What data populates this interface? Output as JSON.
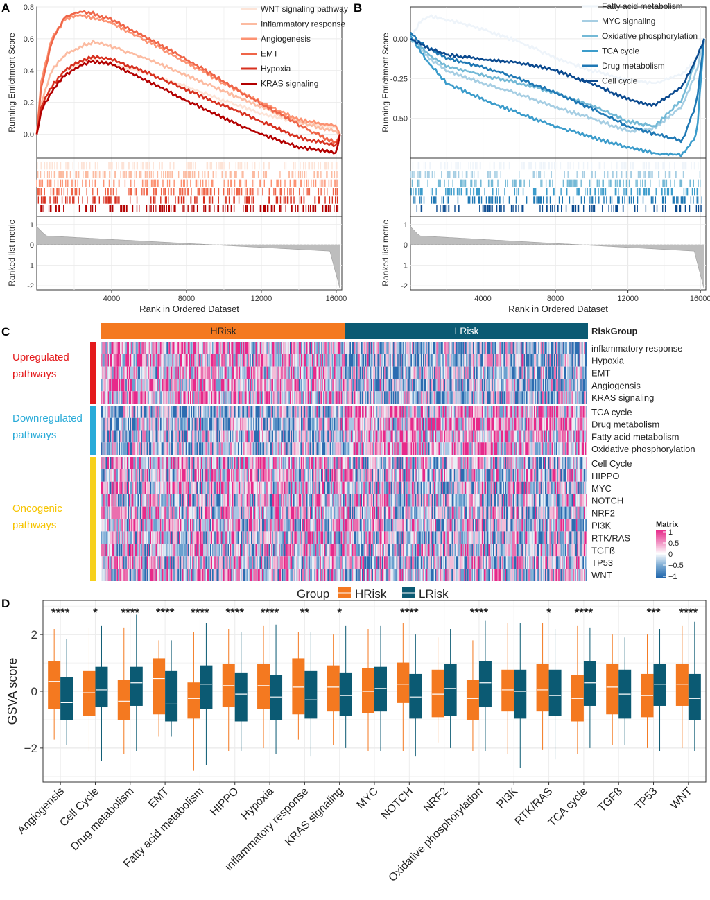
{
  "chart_data": [
    {
      "panel": "A",
      "type": "line",
      "title": "",
      "ylabel": "Running Enrichment Score",
      "ylabel2": "Ranked list metric",
      "xlabel": "Rank in Ordered Dataset",
      "xlim": [
        0,
        16300
      ],
      "ylim": [
        -0.15,
        0.8
      ],
      "xticks": [
        4000,
        8000,
        12000,
        16000
      ],
      "yticks": [
        0.0,
        0.2,
        0.4,
        0.6,
        0.8
      ],
      "ytick_labels": [
        "0.0",
        "0.2",
        "0.4",
        "0.6",
        "0.8"
      ],
      "metric_ylim": [
        -2.2,
        1.4
      ],
      "metric_yticks": [
        -2,
        -1,
        0,
        1
      ],
      "series": [
        {
          "name": "WNT signaling pathway",
          "color": "#fde3d6",
          "x": [
            0,
            250,
            800,
            1500,
            2300,
            3000,
            4000,
            6000,
            8000,
            10000,
            12000,
            14000,
            15500,
            16000,
            16200
          ],
          "y": [
            0.0,
            0.15,
            0.3,
            0.4,
            0.44,
            0.47,
            0.44,
            0.38,
            0.3,
            0.21,
            0.13,
            0.07,
            0.05,
            0.04,
            0.0
          ]
        },
        {
          "name": "Inflammatory response",
          "color": "#fcbba1",
          "x": [
            0,
            250,
            800,
            1500,
            2300,
            3000,
            4000,
            6000,
            8000,
            10000,
            12000,
            14000,
            15500,
            16000,
            16200
          ],
          "y": [
            0.0,
            0.2,
            0.4,
            0.5,
            0.55,
            0.58,
            0.55,
            0.47,
            0.37,
            0.27,
            0.17,
            0.08,
            0.03,
            0.02,
            0.0
          ]
        },
        {
          "name": "Angiogenesis",
          "color": "#fc9272",
          "x": [
            0,
            250,
            800,
            1500,
            2300,
            3000,
            4000,
            6000,
            8000,
            10000,
            12000,
            14000,
            15500,
            16000,
            16200
          ],
          "y": [
            0.0,
            0.35,
            0.6,
            0.72,
            0.75,
            0.73,
            0.7,
            0.58,
            0.45,
            0.32,
            0.2,
            0.09,
            0.06,
            0.05,
            0.0
          ]
        },
        {
          "name": "EMT",
          "color": "#ef6548",
          "x": [
            0,
            250,
            800,
            1500,
            2300,
            3000,
            4000,
            6000,
            8000,
            10000,
            12000,
            14000,
            15500,
            16000,
            16200
          ],
          "y": [
            0.0,
            0.3,
            0.58,
            0.74,
            0.77,
            0.76,
            0.72,
            0.6,
            0.47,
            0.33,
            0.19,
            0.06,
            -0.03,
            -0.05,
            0.0
          ]
        },
        {
          "name": "Hypoxia",
          "color": "#d7301f",
          "x": [
            0,
            250,
            800,
            1500,
            2300,
            3000,
            4000,
            6000,
            8000,
            10000,
            12000,
            14000,
            15500,
            16000,
            16200
          ],
          "y": [
            0.0,
            0.18,
            0.3,
            0.4,
            0.46,
            0.49,
            0.47,
            0.38,
            0.28,
            0.18,
            0.08,
            -0.02,
            -0.06,
            -0.07,
            0.0
          ]
        },
        {
          "name": "KRAS signaling",
          "color": "#b30000",
          "x": [
            0,
            250,
            800,
            1500,
            2300,
            3000,
            4000,
            6000,
            8000,
            10000,
            12000,
            14000,
            15500,
            16000,
            16200
          ],
          "y": [
            0.0,
            0.15,
            0.27,
            0.37,
            0.43,
            0.46,
            0.44,
            0.33,
            0.21,
            0.1,
            0.0,
            -0.08,
            -0.11,
            -0.12,
            0.0
          ]
        }
      ]
    },
    {
      "panel": "B",
      "type": "line",
      "title": "",
      "ylabel": "Running Enrichment Score",
      "ylabel2": "Ranked list metric",
      "xlabel": "Rank in Ordered Dataset",
      "xlim": [
        0,
        16300
      ],
      "ylim": [
        -0.75,
        0.2
      ],
      "xticks": [
        4000,
        8000,
        12000,
        16000
      ],
      "xtick_labels": [
        "4000",
        "8000",
        "12000",
        "16000"
      ],
      "yticks": [
        0.0,
        -0.25,
        -0.5
      ],
      "ytick_labels": [
        "0.00",
        "-0.25",
        "-0.50"
      ],
      "metric_ylim": [
        -2.2,
        1.4
      ],
      "metric_yticks": [
        -2,
        -1,
        0,
        1
      ],
      "series": [
        {
          "name": "Fatty acid metabolism",
          "color": "#eef4fa",
          "x": [
            0,
            500,
            1000,
            2000,
            4000,
            6000,
            8000,
            10000,
            12000,
            13500,
            15000,
            15800,
            16200
          ],
          "y": [
            0.0,
            0.1,
            0.14,
            0.12,
            0.06,
            -0.02,
            -0.12,
            -0.2,
            -0.26,
            -0.28,
            -0.22,
            -0.12,
            0.0
          ]
        },
        {
          "name": "MYC signaling",
          "color": "#a6cee3",
          "x": [
            0,
            500,
            1000,
            2000,
            4000,
            6000,
            8000,
            10000,
            12000,
            13500,
            15000,
            15800,
            16200
          ],
          "y": [
            0.0,
            -0.05,
            -0.12,
            -0.2,
            -0.28,
            -0.35,
            -0.43,
            -0.5,
            -0.58,
            -0.56,
            -0.42,
            -0.2,
            0.0
          ]
        },
        {
          "name": "Oxidative phosphorylation",
          "color": "#74b9d6",
          "x": [
            0,
            500,
            1000,
            2000,
            4000,
            6000,
            8000,
            10000,
            12000,
            13500,
            15000,
            15800,
            16200
          ],
          "y": [
            0.0,
            -0.04,
            -0.1,
            -0.17,
            -0.23,
            -0.28,
            -0.34,
            -0.42,
            -0.52,
            -0.55,
            -0.38,
            -0.12,
            0.0
          ]
        },
        {
          "name": "TCA cycle",
          "color": "#3c9ccb",
          "x": [
            0,
            500,
            1000,
            2000,
            4000,
            6000,
            8000,
            10000,
            12000,
            13500,
            15000,
            15800,
            16200
          ],
          "y": [
            0.02,
            -0.07,
            -0.15,
            -0.28,
            -0.38,
            -0.47,
            -0.55,
            -0.62,
            -0.68,
            -0.72,
            -0.73,
            -0.6,
            0.0
          ]
        },
        {
          "name": "Drug metabolism",
          "color": "#1f78b4",
          "x": [
            0,
            500,
            1000,
            2000,
            4000,
            6000,
            8000,
            10000,
            12000,
            13500,
            15000,
            15800,
            16200
          ],
          "y": [
            0.04,
            -0.02,
            -0.06,
            -0.12,
            -0.18,
            -0.25,
            -0.34,
            -0.44,
            -0.55,
            -0.6,
            -0.64,
            -0.4,
            0.0
          ]
        },
        {
          "name": "Cell cycle",
          "color": "#0b4a8f",
          "x": [
            0,
            500,
            1000,
            2000,
            4000,
            6000,
            8000,
            10000,
            12000,
            13500,
            15000,
            15800,
            16200
          ],
          "y": [
            0.0,
            -0.03,
            -0.06,
            -0.1,
            -0.13,
            -0.15,
            -0.2,
            -0.28,
            -0.38,
            -0.42,
            -0.3,
            -0.12,
            0.0
          ]
        }
      ]
    },
    {
      "panel": "C",
      "type": "heatmap",
      "annotation_title": "RiskGroup",
      "groups": [
        {
          "name": "HRisk",
          "color": "#f47920"
        },
        {
          "name": "LRisk",
          "color": "#0b5a73"
        }
      ],
      "row_blocks": [
        {
          "label": "Upregulated pathways",
          "label_lines": [
            "Upregulated",
            "pathways"
          ],
          "color": "#e41a1c",
          "label_color": "#e41a1c",
          "rows": [
            "inflammatory response",
            "Hypoxia",
            "EMT",
            "Angiogensis",
            "KRAS signaling"
          ]
        },
        {
          "label": "Downregulated pathways",
          "label_lines": [
            "Downregulated",
            "pathways"
          ],
          "color": "#29abd8",
          "label_color": "#29abd8",
          "rows": [
            "TCA cycle",
            "Drug metabolism",
            "Fatty acid metabolism",
            "Oxidative phosphorylation"
          ]
        },
        {
          "label": "Oncogenic pathways",
          "label_lines": [
            "Oncogenic",
            "pathways"
          ],
          "color": "#f6d01c",
          "label_color": "#f6c400",
          "rows": [
            "Cell Cycle",
            "HIPPO",
            "MYC",
            "NOTCH",
            "NRF2",
            "PI3K",
            "RTK/RAS",
            "TGFß",
            "TP53",
            "WNT"
          ]
        }
      ],
      "legend_title": "Matrix",
      "legend_ticks": [
        "1",
        "0.5",
        "0",
        "−0.5",
        "−1"
      ],
      "color_scale": [
        "#2166ac",
        "#ffffff",
        "#e7298a"
      ]
    },
    {
      "panel": "D",
      "type": "box",
      "ylabel": "GSVA score",
      "legend_title": "Group",
      "ylim": [
        -3.2,
        3.2
      ],
      "yticks": [
        -2,
        0,
        2
      ],
      "ytick_labels": [
        "−2",
        "0",
        "2"
      ],
      "groups": [
        {
          "name": "HRisk",
          "color": "#f47920"
        },
        {
          "name": "LRisk",
          "color": "#0b5a73"
        }
      ],
      "categories": [
        "Angiogensis",
        "Cell Cycle",
        "Drug metabolism",
        "EMT",
        "Fatty acid metabolism",
        "HIPPO",
        "Hypoxia",
        "inflammatory response",
        "KRAS signaling",
        "MYC",
        "NOTCH",
        "NRF2",
        "Oxidative phosphorylation",
        "PI3K",
        "RTK/RAS",
        "TCA cycle",
        "TGFß",
        "TP53",
        "WNT"
      ],
      "significance": [
        "****",
        "*",
        "****",
        "****",
        "****",
        "****",
        "****",
        "**",
        "*",
        "",
        "****",
        "",
        "****",
        "",
        "*",
        "****",
        "",
        "***",
        "****"
      ],
      "series": [
        {
          "name": "HRisk",
          "boxes": [
            [
              -1.7,
              -0.6,
              0.35,
              1.05,
              2.2
            ],
            [
              -2.1,
              -0.85,
              -0.05,
              0.7,
              2.25
            ],
            [
              -2.2,
              -1.0,
              -0.35,
              0.4,
              2.25
            ],
            [
              -1.6,
              -0.8,
              0.45,
              1.15,
              1.8
            ],
            [
              -2.8,
              -0.95,
              -0.25,
              0.3,
              2.1
            ],
            [
              -2.1,
              -0.55,
              0.2,
              0.95,
              2.2
            ],
            [
              -2.0,
              -0.6,
              0.2,
              0.95,
              2.3
            ],
            [
              -1.7,
              -0.8,
              0.15,
              1.15,
              2.1
            ],
            [
              -1.9,
              -0.7,
              0.15,
              0.9,
              2.0
            ],
            [
              -2.1,
              -0.75,
              0.0,
              0.8,
              2.2
            ],
            [
              -2.1,
              -0.4,
              0.25,
              1.0,
              2.4
            ],
            [
              -1.8,
              -0.9,
              -0.1,
              0.75,
              1.9
            ],
            [
              -2.1,
              -1.0,
              -0.25,
              0.4,
              1.8
            ],
            [
              -2.2,
              -0.7,
              0.05,
              0.75,
              2.4
            ],
            [
              -2.05,
              -0.7,
              0.05,
              0.95,
              2.4
            ],
            [
              -2.2,
              -1.05,
              -0.25,
              0.55,
              2.3
            ],
            [
              -1.9,
              -0.8,
              0.15,
              0.95,
              2.0
            ],
            [
              -2.0,
              -0.9,
              -0.15,
              0.6,
              2.0
            ],
            [
              -2.0,
              -0.5,
              0.25,
              0.95,
              2.3
            ]
          ]
        },
        {
          "name": "LRisk",
          "boxes": [
            [
              -1.9,
              -1.0,
              -0.4,
              0.5,
              1.85
            ],
            [
              -2.45,
              -0.55,
              0.05,
              0.85,
              2.3
            ],
            [
              -2.1,
              -0.5,
              0.3,
              0.85,
              2.7
            ],
            [
              -1.6,
              -1.05,
              -0.45,
              0.7,
              1.8
            ],
            [
              -2.6,
              -0.6,
              0.25,
              0.9,
              2.4
            ],
            [
              -2.1,
              -1.05,
              -0.1,
              0.65,
              2.1
            ],
            [
              -2.2,
              -1.0,
              -0.2,
              0.55,
              2.35
            ],
            [
              -2.3,
              -0.95,
              -0.3,
              0.7,
              2.1
            ],
            [
              -2.0,
              -0.85,
              -0.15,
              0.65,
              2.3
            ],
            [
              -2.1,
              -0.7,
              0.1,
              0.85,
              2.3
            ],
            [
              -2.3,
              -0.95,
              -0.2,
              0.6,
              2.0
            ],
            [
              -2.0,
              -0.85,
              0.1,
              0.95,
              2.2
            ],
            [
              -2.1,
              -0.55,
              0.3,
              1.05,
              2.5
            ],
            [
              -2.7,
              -0.95,
              0.0,
              0.75,
              2.4
            ],
            [
              -2.4,
              -0.85,
              -0.15,
              0.75,
              2.2
            ],
            [
              -2.0,
              -0.5,
              0.3,
              1.05,
              2.25
            ],
            [
              -1.9,
              -0.95,
              -0.1,
              0.75,
              1.9
            ],
            [
              -2.1,
              -0.5,
              0.25,
              0.95,
              2.2
            ],
            [
              -2.1,
              -1.0,
              -0.25,
              0.6,
              2.45
            ]
          ]
        }
      ]
    }
  ]
}
